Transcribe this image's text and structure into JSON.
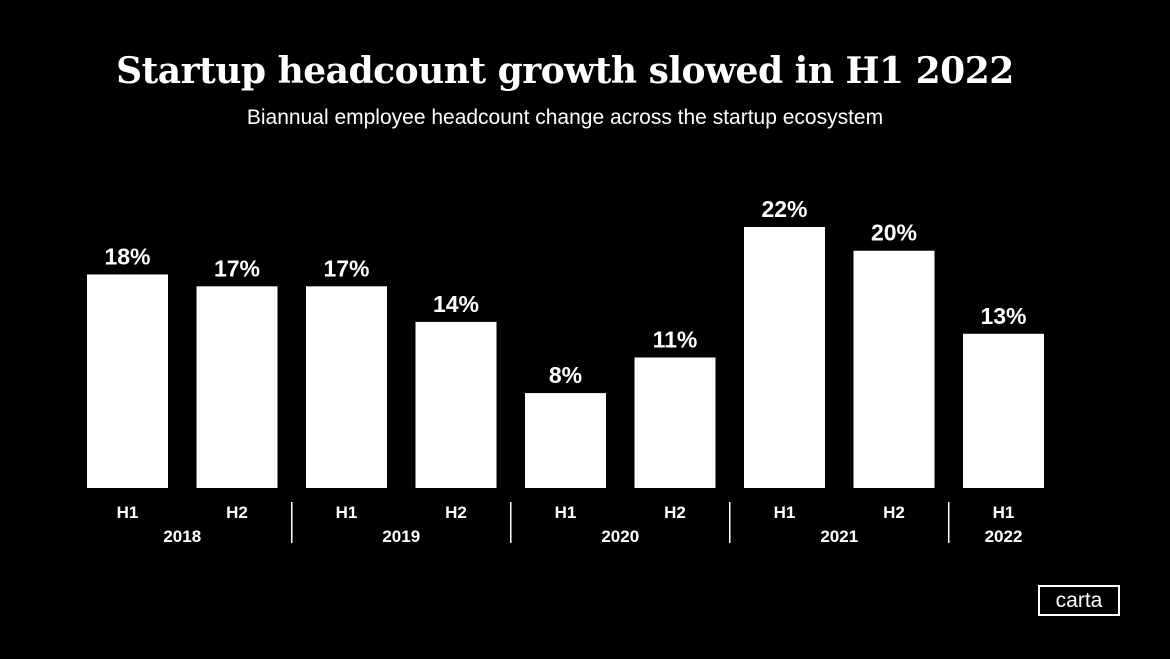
{
  "title": "Startup headcount growth slowed in H1 2022",
  "subtitle": "Biannual employee headcount change across the startup ecosystem",
  "brand": {
    "logo_text": "carta"
  },
  "colors": {
    "background": "#000000",
    "bar": "#ffffff",
    "text": "#ffffff"
  },
  "chart_data": {
    "type": "bar",
    "title": "Startup headcount growth slowed in H1 2022",
    "subtitle": "Biannual employee headcount change across the startup ecosystem",
    "categories": [
      "H1 2018",
      "H2 2018",
      "H1 2019",
      "H2 2019",
      "H1 2020",
      "H2 2020",
      "H1 2021",
      "H2 2021",
      "H1 2022"
    ],
    "x_half_labels": [
      "H1",
      "H2",
      "H1",
      "H2",
      "H1",
      "H2",
      "H1",
      "H2",
      "H1"
    ],
    "x_year_labels": [
      "2018",
      "2019",
      "2020",
      "2021",
      "2022"
    ],
    "values": [
      18,
      17,
      17,
      14,
      8,
      11,
      22,
      20,
      13
    ],
    "value_labels": [
      "18%",
      "17%",
      "17%",
      "14%",
      "8%",
      "11%",
      "22%",
      "20%",
      "13%"
    ],
    "unit": "%",
    "ylim": [
      0,
      22
    ],
    "grid": false,
    "legend": "none",
    "xlabel": "",
    "ylabel": ""
  }
}
